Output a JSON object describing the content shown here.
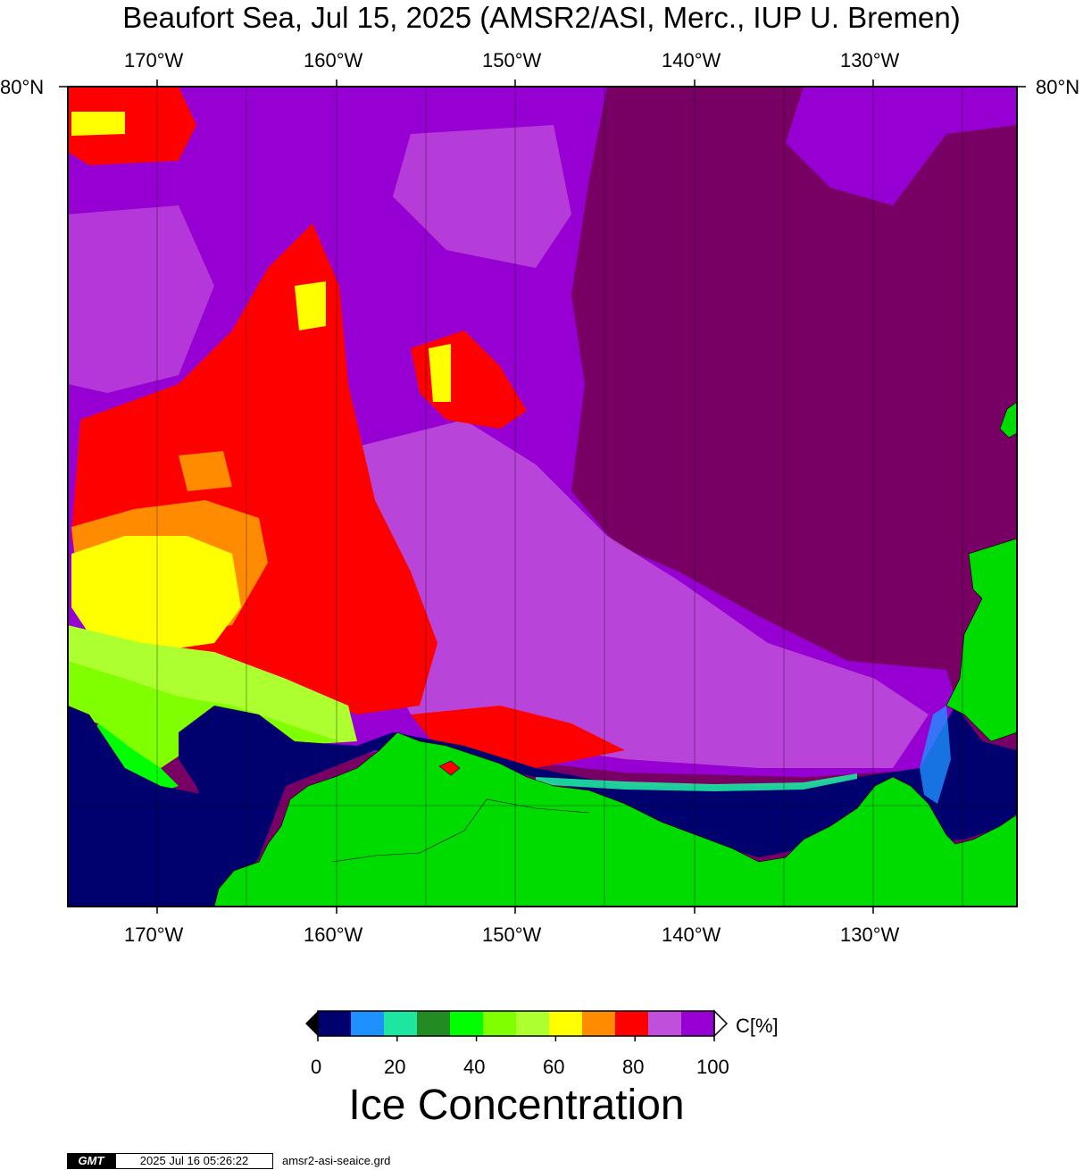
{
  "title": "Beaufort Sea, Jul 15, 2025 (AMSR2/ASI, Merc., IUP U. Bremen)",
  "longitude_labels": [
    "170°W",
    "160°W",
    "150°W",
    "140°W",
    "130°W"
  ],
  "latitude_labels": {
    "left": "80°N",
    "right": "80°N"
  },
  "colorbar": {
    "unit": "C[%]",
    "title": "Ice Concentration",
    "tick_labels": [
      "0",
      "20",
      "40",
      "60",
      "80",
      "100"
    ],
    "colors": [
      "#00006e",
      "#1e90ff",
      "#1ee6a0",
      "#228b22",
      "#00ff00",
      "#7fff00",
      "#adff2f",
      "#ffff00",
      "#ff8c00",
      "#ff0000",
      "#c050dc",
      "#9600d2"
    ],
    "sea_high_color": "#780064",
    "land_color": "#00dc00",
    "open_water_color": "#00006e"
  },
  "footer": {
    "badge": "GMT",
    "timestamp": "2025 Jul 16 05:26:22",
    "filename": "amsr2-asi-seaice.grd"
  }
}
